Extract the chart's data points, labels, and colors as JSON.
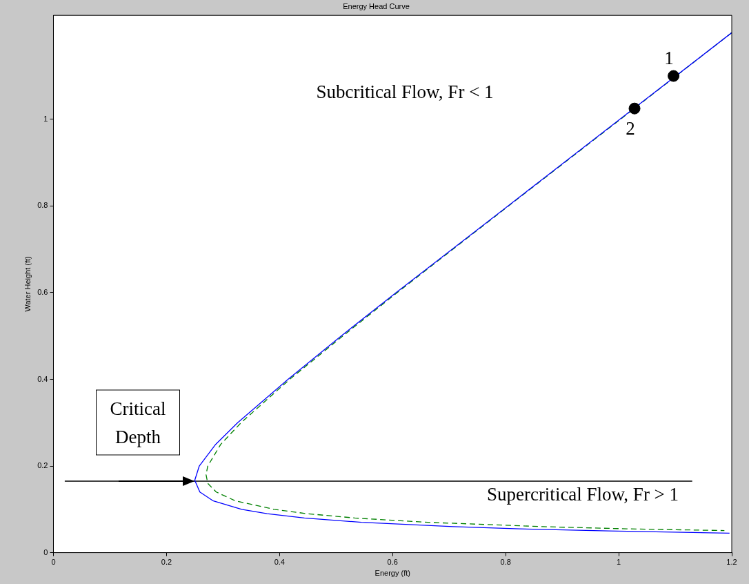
{
  "chart_data": {
    "type": "line",
    "title": "Energy Head Curve",
    "xlabel": "Energy (ft)",
    "ylabel": "Water Height (ft)",
    "xlim": [
      0,
      1.2
    ],
    "ylim": [
      0,
      1.24
    ],
    "xticks": [
      0,
      0.2,
      0.4,
      0.6,
      0.8,
      1,
      1.2
    ],
    "yticks": [
      0,
      0.2,
      0.4,
      0.6,
      0.8,
      1
    ],
    "grid": false,
    "legend": false,
    "series": [
      {
        "color": "#0000ff",
        "line_style": "solid",
        "x": [
          1.2,
          1.002,
          0.804,
          0.606,
          0.509,
          0.415,
          0.326,
          0.287,
          0.258,
          0.25,
          0.259,
          0.282,
          0.333,
          0.378,
          0.444,
          0.545,
          0.707,
          0.825,
          0.982,
          1.196
        ],
        "values": [
          1.2,
          1.0,
          0.8,
          0.6,
          0.5,
          0.4,
          0.3,
          0.25,
          0.2,
          0.167,
          0.14,
          0.12,
          0.1,
          0.09,
          0.08,
          0.07,
          0.06,
          0.055,
          0.05,
          0.045
        ]
      },
      {
        "color": "#008000",
        "line_style": "dashed",
        "x": [
          1.2,
          1.003,
          0.805,
          0.608,
          0.512,
          0.418,
          0.332,
          0.296,
          0.273,
          0.27,
          0.273,
          0.288,
          0.321,
          0.39,
          0.448,
          0.533,
          0.662,
          0.866,
          1.014,
          1.187
        ],
        "values": [
          1.2,
          1.0,
          0.8,
          0.6,
          0.5,
          0.4,
          0.3,
          0.25,
          0.2,
          0.18,
          0.16,
          0.14,
          0.12,
          0.1,
          0.09,
          0.08,
          0.07,
          0.06,
          0.055,
          0.051
        ]
      },
      {
        "color": "#000000",
        "line_style": "solid",
        "x": [
          0.02,
          1.13
        ],
        "values": [
          0.165,
          0.165
        ]
      },
      {
        "type": "scatter",
        "color": "#000000",
        "marker": "circle",
        "x": [
          1.097,
          1.028
        ],
        "values": [
          1.1,
          1.025
        ]
      }
    ],
    "annotations": [
      "Subcritical Flow, Fr < 1",
      "Supercritical Flow, Fr > 1",
      "Critical Depth",
      "1",
      "2"
    ]
  }
}
